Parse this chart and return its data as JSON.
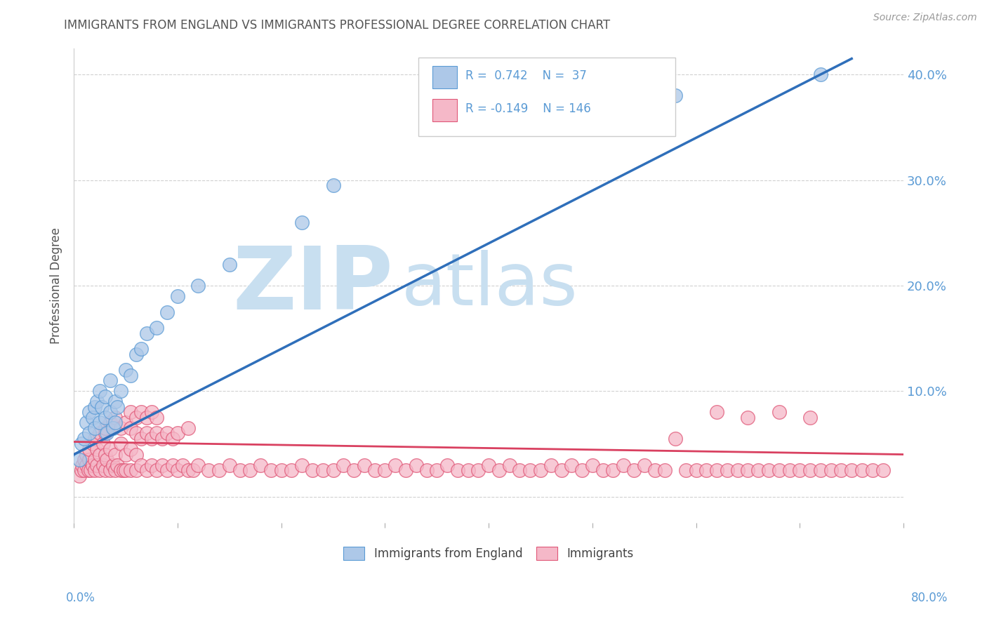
{
  "title": "IMMIGRANTS FROM ENGLAND VS IMMIGRANTS PROFESSIONAL DEGREE CORRELATION CHART",
  "source_text": "Source: ZipAtlas.com",
  "ylabel": "Professional Degree",
  "legend_items": [
    {
      "label": "Immigrants from England",
      "R": 0.742,
      "N": 37,
      "color": "#adc8e8",
      "edge_color": "#5b9bd5"
    },
    {
      "label": "Immigrants",
      "R": -0.149,
      "N": 146,
      "color": "#f5b8c8",
      "edge_color": "#e05878"
    }
  ],
  "blue_line_color": "#2f6fba",
  "pink_line_color": "#d94060",
  "title_color": "#555555",
  "axis_label_color": "#5b9bd5",
  "watermark_zip_color": "#c8dff0",
  "watermark_atlas_color": "#c8dff0",
  "grid_color": "#cccccc",
  "background_color": "#ffffff",
  "xlim": [
    0.0,
    0.8
  ],
  "ylim": [
    -0.025,
    0.425
  ],
  "blue_line_x0": 0.0,
  "blue_line_y0": 0.04,
  "blue_line_x1": 0.75,
  "blue_line_y1": 0.415,
  "pink_line_x0": 0.0,
  "pink_line_y0": 0.052,
  "pink_line_x1": 0.8,
  "pink_line_y1": 0.04,
  "blue_x": [
    0.005,
    0.007,
    0.01,
    0.012,
    0.015,
    0.015,
    0.018,
    0.02,
    0.02,
    0.022,
    0.025,
    0.025,
    0.027,
    0.03,
    0.03,
    0.032,
    0.035,
    0.035,
    0.038,
    0.04,
    0.04,
    0.042,
    0.045,
    0.05,
    0.055,
    0.06,
    0.065,
    0.07,
    0.08,
    0.09,
    0.1,
    0.12,
    0.15,
    0.22,
    0.58,
    0.72,
    0.25
  ],
  "blue_y": [
    0.035,
    0.05,
    0.055,
    0.07,
    0.06,
    0.08,
    0.075,
    0.065,
    0.085,
    0.09,
    0.07,
    0.1,
    0.085,
    0.075,
    0.095,
    0.06,
    0.08,
    0.11,
    0.065,
    0.07,
    0.09,
    0.085,
    0.1,
    0.12,
    0.115,
    0.135,
    0.14,
    0.155,
    0.16,
    0.175,
    0.19,
    0.2,
    0.22,
    0.26,
    0.38,
    0.4,
    0.295
  ],
  "pink_x": [
    0.005,
    0.007,
    0.008,
    0.01,
    0.01,
    0.012,
    0.012,
    0.014,
    0.015,
    0.015,
    0.016,
    0.018,
    0.018,
    0.02,
    0.02,
    0.02,
    0.022,
    0.022,
    0.025,
    0.025,
    0.025,
    0.028,
    0.028,
    0.03,
    0.03,
    0.03,
    0.032,
    0.035,
    0.035,
    0.038,
    0.04,
    0.04,
    0.042,
    0.045,
    0.045,
    0.048,
    0.05,
    0.05,
    0.055,
    0.055,
    0.06,
    0.06,
    0.065,
    0.07,
    0.075,
    0.08,
    0.085,
    0.09,
    0.095,
    0.1,
    0.105,
    0.11,
    0.115,
    0.12,
    0.13,
    0.14,
    0.15,
    0.16,
    0.17,
    0.18,
    0.19,
    0.2,
    0.21,
    0.22,
    0.23,
    0.24,
    0.25,
    0.26,
    0.27,
    0.28,
    0.29,
    0.3,
    0.31,
    0.32,
    0.33,
    0.34,
    0.35,
    0.36,
    0.37,
    0.38,
    0.39,
    0.4,
    0.41,
    0.42,
    0.43,
    0.44,
    0.45,
    0.46,
    0.47,
    0.48,
    0.49,
    0.5,
    0.51,
    0.52,
    0.53,
    0.54,
    0.55,
    0.56,
    0.57,
    0.58,
    0.59,
    0.6,
    0.61,
    0.62,
    0.63,
    0.64,
    0.65,
    0.66,
    0.67,
    0.68,
    0.69,
    0.7,
    0.71,
    0.72,
    0.73,
    0.74,
    0.75,
    0.76,
    0.77,
    0.78,
    0.03,
    0.035,
    0.04,
    0.045,
    0.05,
    0.055,
    0.06,
    0.065,
    0.07,
    0.075,
    0.08,
    0.085,
    0.09,
    0.095,
    0.1,
    0.11,
    0.055,
    0.06,
    0.065,
    0.07,
    0.075,
    0.08,
    0.62,
    0.65,
    0.68,
    0.71
  ],
  "pink_y": [
    0.02,
    0.025,
    0.03,
    0.025,
    0.035,
    0.03,
    0.04,
    0.025,
    0.035,
    0.045,
    0.025,
    0.03,
    0.05,
    0.025,
    0.035,
    0.055,
    0.03,
    0.045,
    0.025,
    0.04,
    0.06,
    0.03,
    0.05,
    0.025,
    0.04,
    0.06,
    0.035,
    0.025,
    0.045,
    0.03,
    0.025,
    0.04,
    0.03,
    0.025,
    0.05,
    0.025,
    0.025,
    0.04,
    0.025,
    0.045,
    0.025,
    0.04,
    0.03,
    0.025,
    0.03,
    0.025,
    0.03,
    0.025,
    0.03,
    0.025,
    0.03,
    0.025,
    0.025,
    0.03,
    0.025,
    0.025,
    0.03,
    0.025,
    0.025,
    0.03,
    0.025,
    0.025,
    0.025,
    0.03,
    0.025,
    0.025,
    0.025,
    0.03,
    0.025,
    0.03,
    0.025,
    0.025,
    0.03,
    0.025,
    0.03,
    0.025,
    0.025,
    0.03,
    0.025,
    0.025,
    0.025,
    0.03,
    0.025,
    0.03,
    0.025,
    0.025,
    0.025,
    0.03,
    0.025,
    0.03,
    0.025,
    0.03,
    0.025,
    0.025,
    0.03,
    0.025,
    0.03,
    0.025,
    0.025,
    0.055,
    0.025,
    0.025,
    0.025,
    0.025,
    0.025,
    0.025,
    0.025,
    0.025,
    0.025,
    0.025,
    0.025,
    0.025,
    0.025,
    0.025,
    0.025,
    0.025,
    0.025,
    0.025,
    0.025,
    0.025,
    0.065,
    0.07,
    0.075,
    0.065,
    0.07,
    0.065,
    0.06,
    0.055,
    0.06,
    0.055,
    0.06,
    0.055,
    0.06,
    0.055,
    0.06,
    0.065,
    0.08,
    0.075,
    0.08,
    0.075,
    0.08,
    0.075,
    0.08,
    0.075,
    0.08,
    0.075
  ]
}
